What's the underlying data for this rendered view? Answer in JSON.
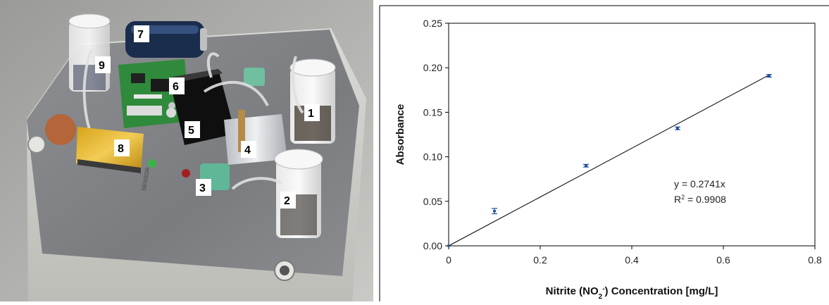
{
  "photo": {
    "labels": [
      "1",
      "2",
      "3",
      "4",
      "5",
      "6",
      "7",
      "8",
      "9"
    ],
    "board_text": "SENSOR"
  },
  "chart_data": {
    "type": "scatter",
    "xlabel_main": "Nitrite (NO",
    "xlabel_sub": "2",
    "xlabel_sup": "-",
    "xlabel_rest": ") Concentration [mg/L]",
    "ylabel": "Absorbance",
    "xlim": [
      0,
      0.8
    ],
    "ylim": [
      0,
      0.25
    ],
    "xticks": [
      "0",
      "0.2",
      "0.4",
      "0.6",
      "0.8"
    ],
    "yticks": [
      "0.00",
      "0.05",
      "0.10",
      "0.15",
      "0.20",
      "0.25"
    ],
    "points": [
      {
        "x": 0,
        "y": 0,
        "err": 0
      },
      {
        "x": 0.1,
        "y": 0.039,
        "err": 0.003
      },
      {
        "x": 0.3,
        "y": 0.09,
        "err": 0.0015
      },
      {
        "x": 0.5,
        "y": 0.132,
        "err": 0.0015
      },
      {
        "x": 0.7,
        "y": 0.191,
        "err": 0.0015
      }
    ],
    "trendline": {
      "slope": 0.2741,
      "x_end": 0.7
    },
    "equation": "y = 0.2741x",
    "r2_prefix": "R",
    "r2_sup": "2",
    "r2_value": " = 0.9908",
    "grid": false,
    "marker_color": "#1f4e9c"
  }
}
